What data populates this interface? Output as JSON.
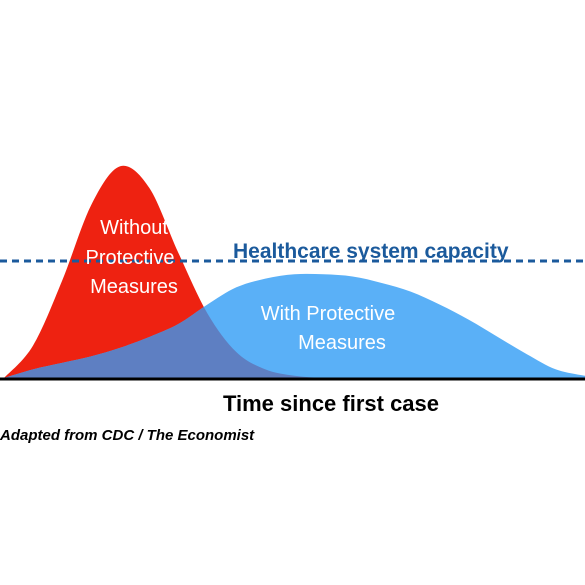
{
  "chart_data": {
    "type": "area",
    "title": "",
    "xlabel": "Time since first case",
    "ylabel": "",
    "x": [
      0,
      5,
      10,
      15,
      20,
      25,
      30,
      35,
      40,
      45,
      50,
      55,
      60,
      65,
      70,
      75,
      80,
      85,
      90,
      95,
      100
    ],
    "series": [
      {
        "name": "Without Protective Measures",
        "values": [
          0,
          0.15,
          0.45,
          0.8,
          0.98,
          0.88,
          0.58,
          0.3,
          0.12,
          0.04,
          0.01,
          0,
          0,
          0,
          0,
          0,
          0,
          0,
          0,
          0,
          0
        ]
      },
      {
        "name": "With Protective Measures",
        "values": [
          0,
          0.04,
          0.07,
          0.1,
          0.14,
          0.19,
          0.25,
          0.34,
          0.42,
          0.46,
          0.48,
          0.48,
          0.47,
          0.44,
          0.4,
          0.34,
          0.27,
          0.19,
          0.11,
          0.04,
          0.01
        ]
      }
    ],
    "capacity_line": {
      "label": "Healthcare system capacity",
      "value": 0.5
    },
    "ylim": [
      0,
      1
    ],
    "xlim": [
      0,
      100
    ],
    "grid": false,
    "legend": "none",
    "source": "Adapted from CDC / The Economist",
    "colors": {
      "without": "#ee2211",
      "with": "#5ab0f7",
      "overlap": "#5e7fc2",
      "capacity": "#1b5a9c",
      "text_dark": "#000000",
      "text_light": "#ffffff"
    }
  }
}
